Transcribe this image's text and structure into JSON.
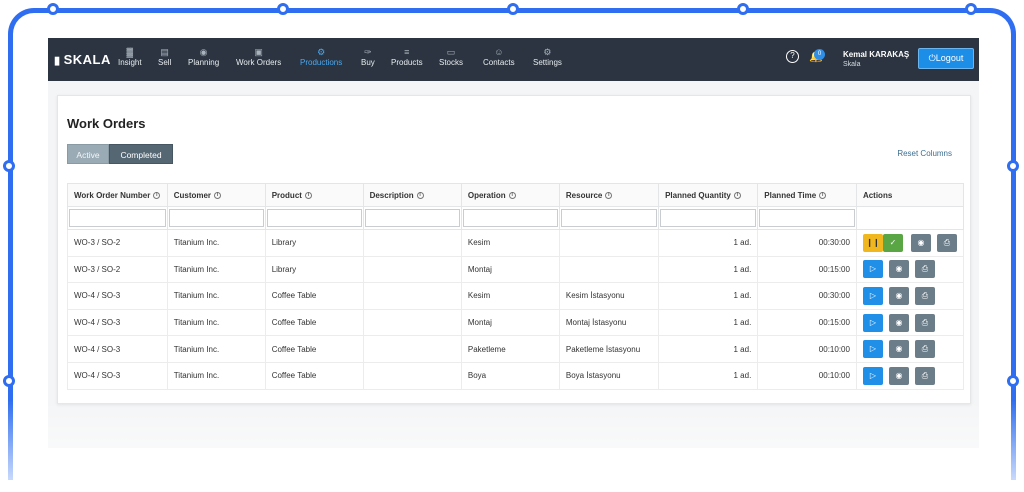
{
  "brand": {
    "name": "SKALA"
  },
  "nav": [
    {
      "label": "Insight",
      "icon": "chart-icon"
    },
    {
      "label": "Sell",
      "icon": "register-icon"
    },
    {
      "label": "Planning",
      "icon": "eye-icon"
    },
    {
      "label": "Work Orders",
      "icon": "clipboard-icon"
    },
    {
      "label": "Productions",
      "icon": "gear-icon",
      "active": true
    },
    {
      "label": "Buy",
      "icon": "cart-icon"
    },
    {
      "label": "Products",
      "icon": "list-icon"
    },
    {
      "label": "Stocks",
      "icon": "folder-icon"
    },
    {
      "label": "Contacts",
      "icon": "person-icon"
    },
    {
      "label": "Settings",
      "icon": "gear-icon"
    }
  ],
  "header": {
    "notifications_count": "0",
    "user_name": "Kemal KARAKAŞ",
    "company": "Skala",
    "logout_label": "Logout"
  },
  "page": {
    "title": "Work Orders",
    "tabs": [
      {
        "label": "Active",
        "selected": true
      },
      {
        "label": "Completed",
        "selected": false
      }
    ],
    "reset_columns_label": "Reset Columns"
  },
  "table": {
    "columns": [
      "Work Order Number",
      "Customer",
      "Product",
      "Description",
      "Operation",
      "Resource",
      "Planned Quantity",
      "Planned Time",
      "Actions"
    ],
    "rows": [
      {
        "work_order": "WO-3 / SO-2",
        "customer": "Titanium Inc.",
        "product": "Library",
        "description": "",
        "operation": "Kesim",
        "resource": "",
        "quantity": "1 ad.",
        "time": "00:30:00",
        "state": "running"
      },
      {
        "work_order": "WO-3 / SO-2",
        "customer": "Titanium Inc.",
        "product": "Library",
        "description": "",
        "operation": "Montaj",
        "resource": "",
        "quantity": "1 ad.",
        "time": "00:15:00",
        "state": "idle"
      },
      {
        "work_order": "WO-4 / SO-3",
        "customer": "Titanium Inc.",
        "product": "Coffee Table",
        "description": "",
        "operation": "Kesim",
        "resource": "Kesim İstasyonu",
        "quantity": "1 ad.",
        "time": "00:30:00",
        "state": "idle"
      },
      {
        "work_order": "WO-4 / SO-3",
        "customer": "Titanium Inc.",
        "product": "Coffee Table",
        "description": "",
        "operation": "Montaj",
        "resource": "Montaj İstasyonu",
        "quantity": "1 ad.",
        "time": "00:15:00",
        "state": "idle"
      },
      {
        "work_order": "WO-4 / SO-3",
        "customer": "Titanium Inc.",
        "product": "Coffee Table",
        "description": "",
        "operation": "Paketleme",
        "resource": "Paketleme İstasyonu",
        "quantity": "1 ad.",
        "time": "00:10:00",
        "state": "idle"
      },
      {
        "work_order": "WO-4 / SO-3",
        "customer": "Titanium Inc.",
        "product": "Coffee Table",
        "description": "",
        "operation": "Boya",
        "resource": "Boya İstasyonu",
        "quantity": "1 ad.",
        "time": "00:10:00",
        "state": "idle"
      }
    ]
  },
  "colors": {
    "accent": "#1f8fe8",
    "navbar": "#2b3440",
    "pause": "#f0b71e",
    "complete": "#5ba644",
    "frame": "#2f6ef0"
  }
}
